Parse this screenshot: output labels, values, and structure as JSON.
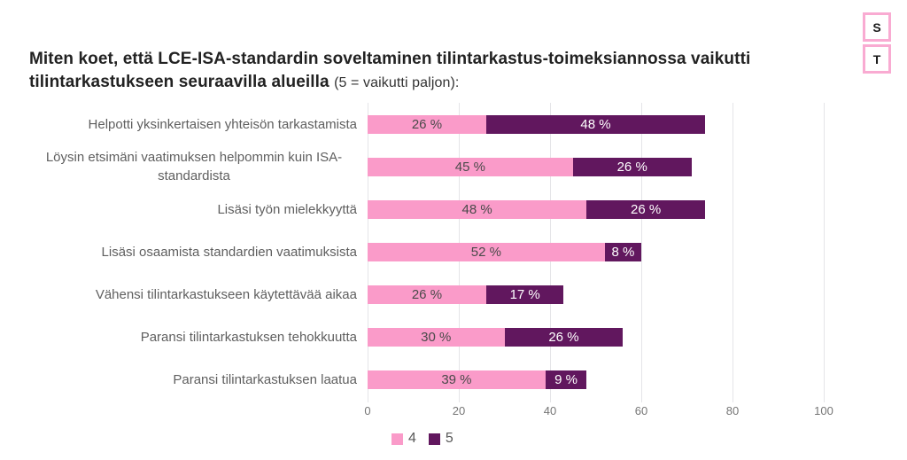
{
  "header": {
    "title_main": "Miten koet, että LCE-ISA-standardin soveltaminen tilintarkastus-toimeksiannossa vaikutti tilintarkastukseen seuraavilla alueilla ",
    "title_note": "(5 = vaikutti paljon):"
  },
  "logo": {
    "top_letter": "S",
    "bottom_letter": "T",
    "border_color": "#f9abd2"
  },
  "chart_data": {
    "type": "bar",
    "orientation": "horizontal",
    "stacked": true,
    "title": "Miten koet, että LCE-ISA-standardin soveltaminen tilintarkastus-toimeksiannossa vaikutti tilintarkastukseen seuraavilla alueilla (5 = vaikutti paljon):",
    "categories": [
      "Helpotti yksinkertaisen yhteisön tarkastamista",
      "Löysin etsimäni vaatimuksen helpommin kuin ISA-standardista",
      "Lisäsi työn mielekkyyttä",
      "Lisäsi osaamista standardien vaatimuksista",
      "Vähensi tilintarkastukseen käytettävää aikaa",
      "Paransi tilintarkastuksen tehokkuutta",
      "Paransi tilintarkastuksen laatua"
    ],
    "series": [
      {
        "name": "4",
        "color": "#fa9bc9",
        "label_color": "#4a4a4a",
        "values": [
          26,
          45,
          48,
          52,
          26,
          30,
          39
        ]
      },
      {
        "name": "5",
        "color": "#61175e",
        "label_color": "#ffffff",
        "values": [
          48,
          26,
          26,
          8,
          17,
          26,
          9
        ]
      }
    ],
    "value_suffix": " %",
    "xlim": [
      0,
      100
    ],
    "xticks": [
      0,
      20,
      40,
      60,
      80,
      100
    ],
    "grid": "vertical",
    "gridline_color": "#e5e5e8",
    "legend_position": "bottom-left",
    "legend_entries": [
      "4",
      "5"
    ]
  }
}
